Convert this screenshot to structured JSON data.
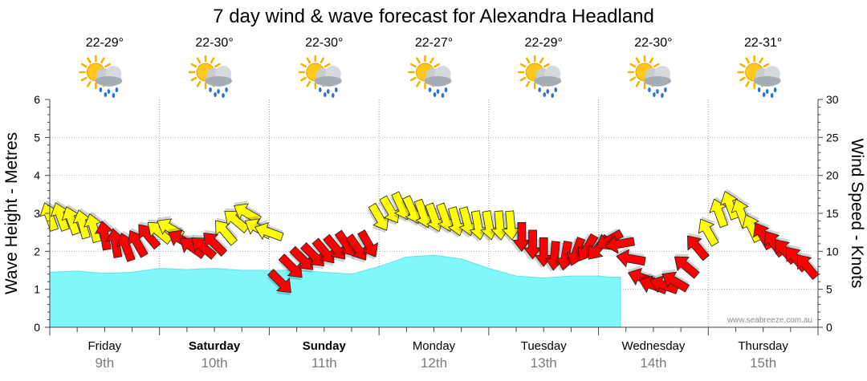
{
  "chart_data": {
    "type": "area",
    "title": "7 day wind & wave forecast for Alexandra Headland",
    "ylabel_left": "Wave Height - Metres",
    "ylabel_right": "Wind Speed - Knots",
    "ylim_left": [
      0,
      6
    ],
    "ylim_right": [
      0,
      30
    ],
    "yticks_left": [
      "0",
      "1",
      "2",
      "3",
      "4",
      "5",
      "6"
    ],
    "yticks_right": [
      "0",
      "5",
      "10",
      "15",
      "20",
      "25",
      "30"
    ],
    "grid": true,
    "credit": "www.seabreeze.com.au",
    "days": [
      {
        "day": "Friday",
        "date": "9th",
        "temp": "22-29°",
        "bold": false,
        "weather_icon": "sun-cloud-rain-icon"
      },
      {
        "day": "Saturday",
        "date": "10th",
        "temp": "22-30°",
        "bold": true,
        "weather_icon": "sun-cloud-rain-icon"
      },
      {
        "day": "Sunday",
        "date": "11th",
        "temp": "22-30°",
        "bold": true,
        "weather_icon": "sun-cloud-rain-icon"
      },
      {
        "day": "Monday",
        "date": "12th",
        "temp": "22-27°",
        "bold": false,
        "weather_icon": "sun-cloud-rain-icon"
      },
      {
        "day": "Tuesday",
        "date": "13th",
        "temp": "22-29°",
        "bold": false,
        "weather_icon": "sun-cloud-rain-icon"
      },
      {
        "day": "Wednesday",
        "date": "14th",
        "temp": "22-30°",
        "bold": false,
        "weather_icon": "sun-cloud-rain-icon"
      },
      {
        "day": "Thursday",
        "date": "15th",
        "temp": "22-31°",
        "bold": false,
        "weather_icon": "sun-cloud-rain-icon"
      }
    ],
    "wave_series": {
      "name": "Wave Height",
      "color": "#80f8fb",
      "x_days": [
        0,
        0.25,
        0.5,
        0.75,
        1.0,
        1.25,
        1.5,
        1.75,
        2.0,
        2.25,
        2.5,
        2.75,
        3.0,
        3.25,
        3.5,
        3.75,
        4.0,
        4.25,
        4.5,
        4.75,
        5.0,
        5.1,
        5.2
      ],
      "values": [
        1.45,
        1.48,
        1.42,
        1.45,
        1.55,
        1.52,
        1.55,
        1.5,
        1.5,
        1.5,
        1.45,
        1.4,
        1.6,
        1.85,
        1.9,
        1.8,
        1.55,
        1.35,
        1.3,
        1.35,
        1.35,
        1.32,
        1.32
      ]
    },
    "wind_series": {
      "name": "Wind Speed",
      "colors": {
        "strong": "#ff0000",
        "moderate": "#ffff00"
      },
      "threshold_knots": 12,
      "x_days": [
        0,
        0.1,
        0.2,
        0.3,
        0.4,
        0.5,
        0.6,
        0.7,
        0.8,
        0.9,
        1.0,
        1.1,
        1.2,
        1.3,
        1.4,
        1.5,
        1.6,
        1.7,
        1.8,
        1.9,
        2.0,
        2.1,
        2.2,
        2.3,
        2.4,
        2.5,
        2.6,
        2.7,
        2.8,
        2.9,
        3.0,
        3.1,
        3.2,
        3.3,
        3.4,
        3.5,
        3.6,
        3.7,
        3.8,
        3.9,
        4.0,
        4.1,
        4.2,
        4.3,
        4.4,
        4.5,
        4.6,
        4.7,
        4.8,
        4.9,
        5.0,
        5.1,
        5.2,
        5.3,
        5.4,
        5.5,
        5.6,
        5.7,
        5.8,
        5.9,
        6.0,
        6.1,
        6.2,
        6.3,
        6.4,
        6.5,
        6.6,
        6.7,
        6.8,
        6.9
      ],
      "values": [
        14.5,
        14.5,
        14,
        13.5,
        13,
        12,
        11,
        10.5,
        11,
        12,
        12.5,
        13,
        11.5,
        10.5,
        10.5,
        11,
        12.5,
        14,
        15,
        13,
        12.5,
        6,
        8,
        9,
        9.5,
        10,
        10.5,
        11,
        10.5,
        11,
        14.5,
        15.5,
        16,
        15.5,
        15,
        14.5,
        14.5,
        14,
        14,
        13.5,
        13.5,
        13.5,
        13.5,
        12,
        11,
        10,
        9.5,
        9.5,
        10,
        10.5,
        10.5,
        11.5,
        11,
        9,
        6.5,
        5.5,
        5.5,
        6,
        8,
        10.5,
        12.5,
        15,
        16,
        15,
        13,
        12,
        11,
        10,
        9,
        8
      ],
      "direction_deg": [
        250,
        250,
        250,
        255,
        255,
        260,
        260,
        250,
        240,
        230,
        220,
        210,
        210,
        215,
        220,
        225,
        230,
        220,
        210,
        210,
        200,
        45,
        45,
        45,
        45,
        50,
        50,
        55,
        55,
        60,
        60,
        60,
        65,
        65,
        70,
        70,
        70,
        75,
        75,
        80,
        80,
        85,
        85,
        90,
        90,
        90,
        95,
        100,
        110,
        120,
        130,
        150,
        170,
        190,
        200,
        200,
        200,
        210,
        220,
        230,
        240,
        250,
        250,
        250,
        245,
        240,
        235,
        230,
        230,
        230
      ]
    }
  }
}
